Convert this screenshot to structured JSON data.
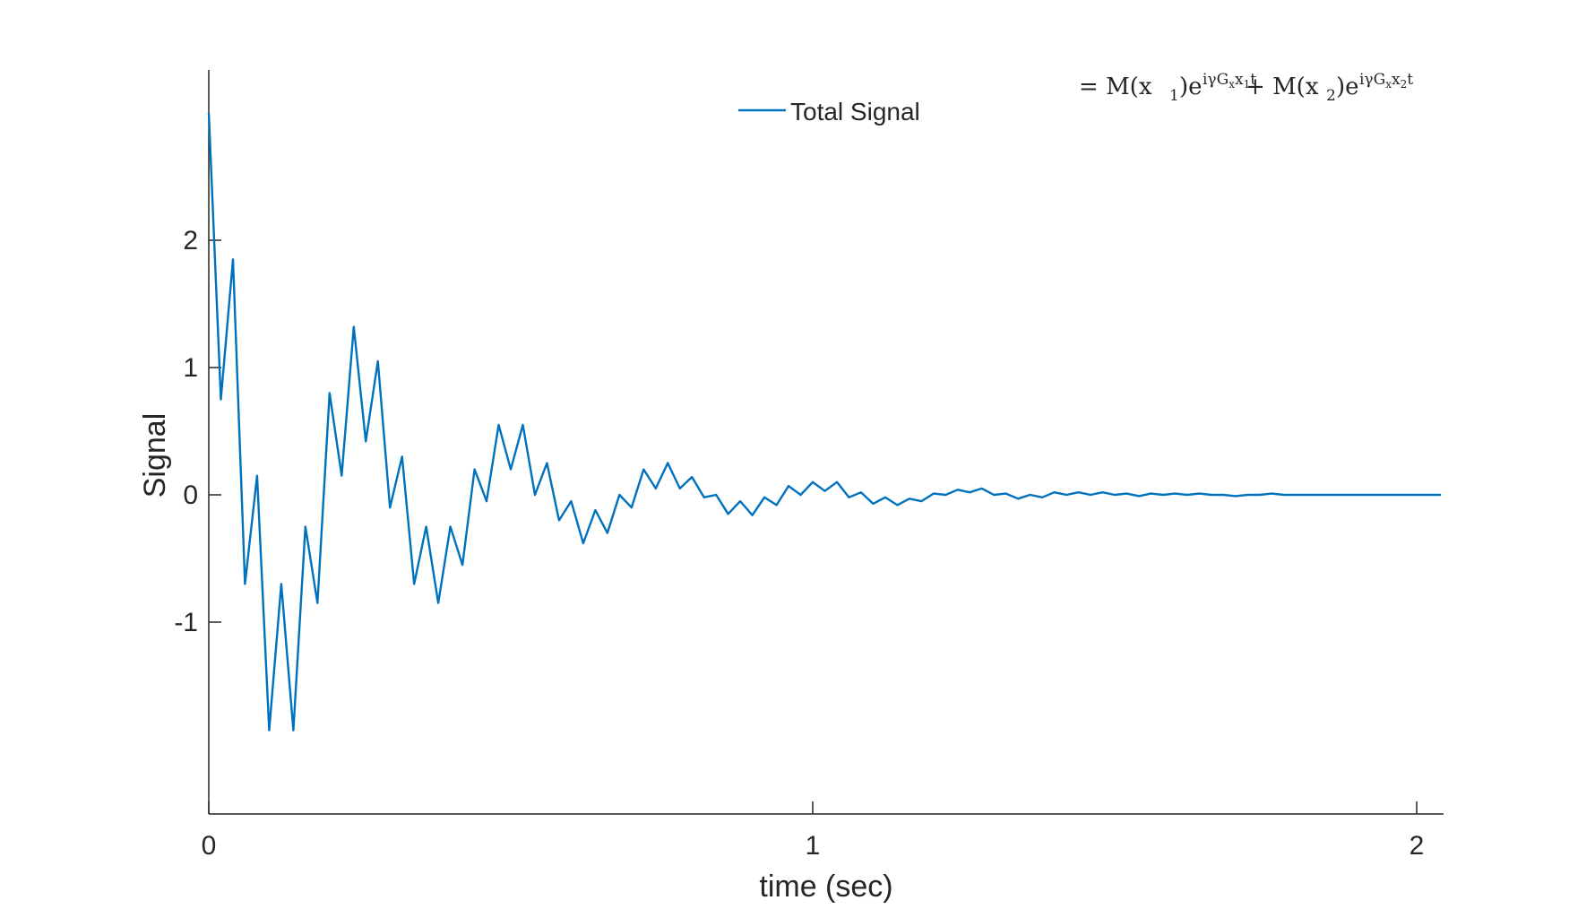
{
  "chart_data": {
    "type": "line",
    "title": "",
    "xlabel": "time (sec)",
    "ylabel": "Signal",
    "xlim": [
      0,
      2.05
    ],
    "ylim": [
      -2.5,
      3.35
    ],
    "x_ticks": [
      0,
      1,
      2
    ],
    "x_tick_labels": [
      "0",
      "1",
      "2"
    ],
    "y_ticks": [
      -1,
      0,
      1,
      2
    ],
    "y_tick_labels": [
      "-1",
      "0",
      "1",
      "2"
    ],
    "grid": false,
    "legend_position": "top-center",
    "colors": {
      "series": "#0072BD",
      "axis": "#262626"
    },
    "series": [
      {
        "name": "Total Signal",
        "x": [
          0,
          0.02,
          0.04,
          0.06,
          0.08,
          0.1,
          0.12,
          0.14,
          0.16,
          0.18,
          0.2,
          0.22,
          0.24,
          0.26,
          0.28,
          0.3,
          0.32,
          0.34,
          0.36,
          0.38,
          0.4,
          0.42,
          0.44,
          0.46,
          0.48,
          0.5,
          0.52,
          0.54,
          0.56,
          0.58,
          0.6,
          0.62,
          0.64,
          0.66,
          0.68,
          0.7,
          0.72,
          0.74,
          0.76,
          0.78,
          0.8,
          0.82,
          0.84,
          0.86,
          0.88,
          0.9,
          0.92,
          0.94,
          0.96,
          0.98,
          1.0,
          1.02,
          1.04,
          1.06,
          1.08,
          1.1,
          1.12,
          1.14,
          1.16,
          1.18,
          1.2,
          1.22,
          1.24,
          1.26,
          1.28,
          1.3,
          1.32,
          1.34,
          1.36,
          1.38,
          1.4,
          1.42,
          1.44,
          1.46,
          1.48,
          1.5,
          1.52,
          1.54,
          1.56,
          1.58,
          1.6,
          1.62,
          1.64,
          1.66,
          1.68,
          1.7,
          1.72,
          1.74,
          1.76,
          1.78,
          1.8,
          1.82,
          1.84,
          1.86,
          1.88,
          1.9,
          1.92,
          1.94,
          1.96,
          1.98,
          2.0,
          2.02,
          2.04
        ],
        "values": [
          3.0,
          0.75,
          1.85,
          -0.7,
          0.15,
          -1.85,
          -0.7,
          -1.85,
          -0.25,
          -0.85,
          0.8,
          0.15,
          1.32,
          0.42,
          1.05,
          -0.1,
          0.3,
          -0.7,
          -0.25,
          -0.85,
          -0.25,
          -0.55,
          0.2,
          -0.05,
          0.55,
          0.2,
          0.55,
          0.0,
          0.25,
          -0.2,
          -0.05,
          -0.38,
          -0.12,
          -0.3,
          0.0,
          -0.1,
          0.2,
          0.05,
          0.25,
          0.05,
          0.14,
          -0.02,
          0.0,
          -0.15,
          -0.05,
          -0.16,
          -0.02,
          -0.08,
          0.07,
          0.0,
          0.1,
          0.03,
          0.1,
          -0.02,
          0.02,
          -0.07,
          -0.02,
          -0.08,
          -0.03,
          -0.05,
          0.01,
          0.0,
          0.04,
          0.02,
          0.05,
          0.0,
          0.01,
          -0.03,
          0.0,
          -0.02,
          0.02,
          0.0,
          0.02,
          0.0,
          0.02,
          0.0,
          0.01,
          -0.01,
          0.01,
          0.0,
          0.01,
          0.0,
          0.01,
          0.0,
          0.0,
          -0.01,
          0.0,
          0.0,
          0.01,
          0.0,
          0.0,
          0.0,
          0.0,
          0.0,
          0.0,
          0.0,
          0.0,
          0.0,
          0.0,
          0.0,
          0.0,
          0.0,
          0.0
        ]
      }
    ],
    "annotation": {
      "prefix": "= ",
      "term1_coef": "M(x",
      "term1_sub": "1",
      "term1_close": ")e",
      "term1_exp": "iγG",
      "term1_exp_sub_x": "x",
      "term1_exp_var": "x",
      "term1_exp_var_sub": "1",
      "term1_exp_t": "t",
      "plus": " + ",
      "term2_coef": "M(x",
      "term2_sub": "2",
      "term2_close": ")e",
      "term2_exp": "iγG",
      "term2_exp_sub_x": "x",
      "term2_exp_var": "x",
      "term2_exp_var_sub": "2",
      "term2_exp_t": "t"
    }
  }
}
